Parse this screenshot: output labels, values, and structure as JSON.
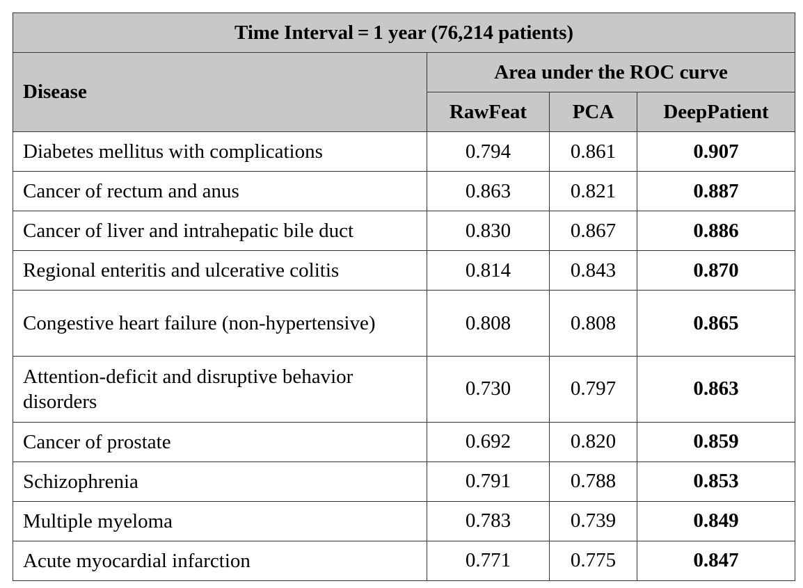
{
  "table": {
    "title": "Time Interval = 1 year (76,214 patients)",
    "group_header": "Area under the ROC curve",
    "disease_header": "Disease",
    "columns": [
      "RawFeat",
      "PCA",
      "DeepPatient"
    ],
    "rows": [
      {
        "disease": "Diabetes mellitus with complications",
        "rawfeat": "0.794",
        "pca": "0.861",
        "deeppatient": "0.907"
      },
      {
        "disease": "Cancer of rectum and anus",
        "rawfeat": "0.863",
        "pca": "0.821",
        "deeppatient": "0.887"
      },
      {
        "disease": "Cancer of liver and intrahepatic bile duct",
        "rawfeat": "0.830",
        "pca": "0.867",
        "deeppatient": "0.886"
      },
      {
        "disease": "Regional enteritis and ulcerative colitis",
        "rawfeat": "0.814",
        "pca": "0.843",
        "deeppatient": "0.870"
      },
      {
        "disease": "Congestive heart failure (non-hypertensive)",
        "rawfeat": "0.808",
        "pca": "0.808",
        "deeppatient": "0.865"
      },
      {
        "disease": "Attention-deficit and disruptive behavior disorders",
        "rawfeat": "0.730",
        "pca": "0.797",
        "deeppatient": "0.863"
      },
      {
        "disease": "Cancer of prostate",
        "rawfeat": "0.692",
        "pca": "0.820",
        "deeppatient": "0.859"
      },
      {
        "disease": "Schizophrenia",
        "rawfeat": "0.791",
        "pca": "0.788",
        "deeppatient": "0.853"
      },
      {
        "disease": "Multiple myeloma",
        "rawfeat": "0.783",
        "pca": "0.739",
        "deeppatient": "0.849"
      },
      {
        "disease": "Acute myocardial infarction",
        "rawfeat": "0.771",
        "pca": "0.775",
        "deeppatient": "0.847"
      }
    ]
  },
  "colors": {
    "header_background": "#c8c8c8",
    "border": "#333333",
    "text": "#000000"
  }
}
